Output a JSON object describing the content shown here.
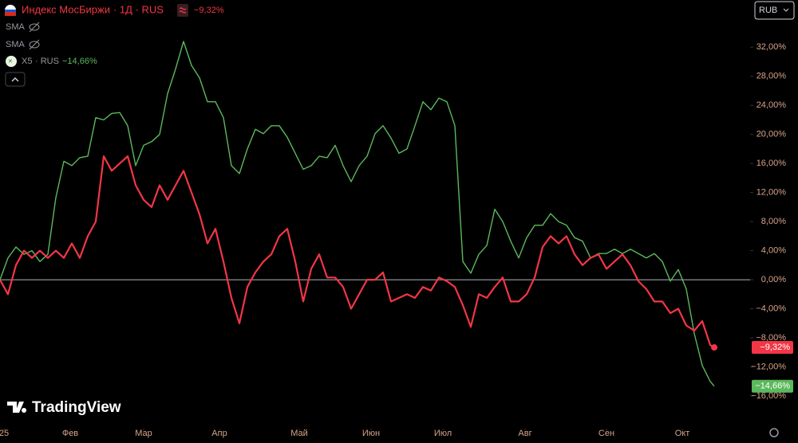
{
  "chart_data": {
    "type": "line",
    "currency": "RUB",
    "main_suffix": "· 1Д · RUS",
    "compare_suffix": "· RUS",
    "indicators": [
      "SMA",
      "SMA"
    ],
    "watermark": "TradingView",
    "xlim": [
      0,
      94
    ],
    "ylim": [
      -20.5,
      38.5
    ],
    "baseline": 0,
    "xticks": [
      {
        "value": 0.5,
        "label": "25"
      },
      {
        "value": 8.8,
        "label": "Фев"
      },
      {
        "value": 18,
        "label": "Мар"
      },
      {
        "value": 27.5,
        "label": "Апр"
      },
      {
        "value": 37.5,
        "label": "Май"
      },
      {
        "value": 46.5,
        "label": "Июн"
      },
      {
        "value": 55.5,
        "label": "Июл"
      },
      {
        "value": 65.8,
        "label": "Авг"
      },
      {
        "value": 76,
        "label": "Сен"
      },
      {
        "value": 85.5,
        "label": "Окт"
      }
    ],
    "yticks": [
      {
        "value": 32,
        "label": "32,00%"
      },
      {
        "value": 28,
        "label": "28,00%"
      },
      {
        "value": 24,
        "label": "24,00%"
      },
      {
        "value": 20,
        "label": "20,00%"
      },
      {
        "value": 16,
        "label": "16,00%"
      },
      {
        "value": 12,
        "label": "12,00%"
      },
      {
        "value": 8,
        "label": "8,00%"
      },
      {
        "value": 4,
        "label": "4,00%"
      },
      {
        "value": 0,
        "label": "0,00%"
      },
      {
        "value": -4,
        "label": "−4,00%"
      },
      {
        "value": -8,
        "label": "−8,00%"
      },
      {
        "value": -12,
        "label": "−12,00%"
      },
      {
        "value": -16,
        "label": "−16,00%"
      }
    ],
    "x": [
      0,
      1,
      2,
      3,
      4,
      5,
      6,
      7,
      8,
      9,
      10,
      11,
      12,
      13,
      14,
      15,
      16,
      17,
      18,
      19,
      20,
      21,
      22,
      23,
      24,
      25,
      26,
      27,
      28,
      29,
      30,
      31,
      32,
      33,
      34,
      35,
      36,
      37,
      38,
      39,
      40,
      41,
      42,
      43,
      44,
      45,
      46,
      47,
      48,
      49,
      50,
      51,
      52,
      53,
      54,
      55,
      56,
      57,
      58,
      59,
      60,
      61,
      62,
      63,
      64,
      65,
      66,
      67,
      68,
      69,
      70,
      71,
      72,
      73,
      74,
      75,
      76,
      77,
      78,
      79,
      80,
      81,
      82,
      83,
      84,
      85,
      86,
      87,
      88,
      89,
      89.5
    ],
    "series": [
      {
        "name": "Индекс МосБиржи",
        "color": "#f23645",
        "last_label": "−9,32%",
        "values": [
          0,
          -2,
          2,
          4,
          3,
          4,
          3,
          4,
          3,
          5,
          3,
          6,
          8,
          17,
          15,
          16,
          17,
          13,
          11,
          10,
          13,
          11,
          13,
          15,
          12,
          9,
          5,
          7,
          2.5,
          -2.5,
          -6,
          -1,
          1,
          2.5,
          3.5,
          6,
          7,
          2.5,
          -3,
          1.5,
          3.5,
          0.3,
          0.3,
          -1,
          -4,
          -2,
          0,
          0,
          1,
          -3,
          -2.5,
          -2,
          -2.5,
          -1,
          -1.5,
          0.3,
          -0.2,
          -1,
          -3.5,
          -6.5,
          -2,
          -2.5,
          -1,
          0.3,
          -3,
          -3,
          -2,
          0.3,
          4.5,
          6,
          5,
          6,
          3.5,
          2,
          3,
          3.5,
          1.5,
          2.5,
          3.5,
          2,
          -0.2,
          -1.3,
          -3,
          -3,
          -4.6,
          -4,
          -6.3,
          -7,
          -5.7,
          -9,
          -9.32
        ]
      },
      {
        "name": "X5",
        "color": "#5cb85c",
        "last_label": "−14,66%",
        "values": [
          0,
          3,
          4.5,
          3.5,
          4,
          2.5,
          3.5,
          11.3,
          16.3,
          15.7,
          16.8,
          17,
          22.3,
          22,
          22.9,
          23,
          21.2,
          15.7,
          18.5,
          19,
          20,
          25.6,
          29,
          32.8,
          29.5,
          27.8,
          24.5,
          24.5,
          22.3,
          15.7,
          14.6,
          18,
          20.7,
          20.1,
          21.2,
          21.2,
          19.6,
          17.4,
          15.2,
          15.7,
          17,
          16.8,
          18.5,
          15.7,
          13.5,
          15.7,
          17,
          20.1,
          21.2,
          19.5,
          17.4,
          18,
          21.2,
          24.5,
          23.4,
          25,
          24.5,
          21.2,
          2.5,
          0.9,
          3.5,
          4.7,
          9.7,
          8,
          5.3,
          3,
          5.8,
          7.5,
          7.5,
          9.1,
          8,
          7.5,
          5.8,
          5.3,
          3,
          3.6,
          3.6,
          4.2,
          3.6,
          4.2,
          3.6,
          3,
          3.6,
          2.5,
          -0.2,
          1.4,
          -1.3,
          -7.4,
          -11.8,
          -14,
          -14.66
        ]
      }
    ]
  }
}
